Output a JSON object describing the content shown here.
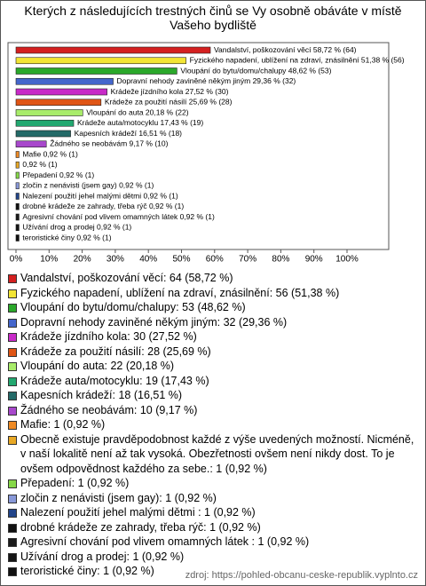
{
  "chart_data": {
    "type": "bar",
    "orientation": "horizontal",
    "title": "Kterých z následujících trestných činů se Vy osobně obáváte v místě Vašeho bydliště",
    "categories": [
      "Vandalství, poškozování věcí: 64 (58,72 %)",
      "Fyzického napadení, ublížení na zdraví, znásilnění: 56 (51,38 %)",
      "Vloupání do bytu/domu/chalupy: 53 (48,62 %)",
      "Dopravní nehody zaviněné někým jiným: 32 (29,36 %)",
      "Krádeže jízdního kola: 30 (27,52 %)",
      "Krádeže za použití násilí: 28 (25,69 %)",
      "Vloupání do auta: 22 (20,18 %)",
      "Krádeže auta/motocyklu: 19 (17,43 %)",
      "Kapesních krádeží: 18 (16,51 %)",
      "Žádného se neobávám: 10 (9,17 %)",
      "Mafie: 1 (0,92 %)",
      "Obecně existuje pravděpodobnost každé z výše uvedených možností. Nicméně, v naší lokalitě není až tak vysoká. Obezřetnosti ovšem není nikdy dost. To je ovšem odpovědnost každého za sebe.: 1 (0,92 %)",
      "Přepadení: 1 (0,92 %)",
      "zločin z nenávisti (jsem gay): 1 (0,92 %)",
      "Nalezení použití jehel malými dětmi : 1 (0,92 %)",
      "drobné krádeže ze zahrady, třeba rýč: 1 (0,92 %)",
      "Agresivní chování pod vlivem omamných látek : 1 (0,92 %)",
      "Užívání drog a prodej: 1 (0,92 %)",
      "teroristické činy: 1 (0,92 %)"
    ],
    "values": [
      58.72,
      51.38,
      48.62,
      29.36,
      27.52,
      25.69,
      20.18,
      17.43,
      16.51,
      9.17,
      0.92,
      0.92,
      0.92,
      0.92,
      0.92,
      0.92,
      0.92,
      0.92,
      0.92
    ],
    "value_labels": [
      "Vandalství, poškozování věcí 58,72 % (64)",
      "Fyzického napadení, ublížení na zdraví, znásilnění 51,38 % (56)",
      "Vloupání do bytu/domu/chalupy 48,62 % (53)",
      "Dopravní nehody zaviněné někým jiným 29,36 % (32)",
      "Krádeže jízdního kola 27,52 % (30)",
      "Krádeže za použití násilí 25,69 % (28)",
      "Vloupání do auta 20,18 % (22)",
      "Krádeže auta/motocyklu 17,43 % (19)",
      "Kapesních krádeží 16,51 % (18)",
      "Žádného se neobávám 9,17 % (10)",
      "Mafie 0,92 % (1)",
      "0,92 % (1)",
      "Přepadení 0,92 % (1)",
      "zločin z nenávisti (jsem gay) 0,92 % (1)",
      "Nalezení použití jehel malými dětmi  0,92 % (1)",
      "drobné krádeže ze zahrady, třeba rýč 0,92 % (1)",
      "Agresivní chování pod vlivem omamných látek  0,92 % (1)",
      "Užívání drog a prodej 0,92 % (1)",
      "teroristické činy 0,92 % (1)"
    ],
    "colors": [
      "#d42020",
      "#f2e535",
      "#2aa82a",
      "#4466cc",
      "#c82ac8",
      "#e05515",
      "#a8ec6a",
      "#22a870",
      "#236a68",
      "#a848cc",
      "#ee8a25",
      "#e8a825",
      "#86d848",
      "#8898d8",
      "#22458a",
      "#111111",
      "#1a1a1a",
      "#151515",
      "#101010"
    ],
    "xlim": [
      0,
      112
    ],
    "xticks": [
      {
        "value": 0,
        "label": "0%"
      },
      {
        "value": 10,
        "label": "10%"
      },
      {
        "value": 20,
        "label": "20%"
      },
      {
        "value": 30,
        "label": "30%"
      },
      {
        "value": 40,
        "label": "40%"
      },
      {
        "value": 50,
        "label": "50%"
      },
      {
        "value": 60,
        "label": "60%"
      },
      {
        "value": 70,
        "label": "70%"
      },
      {
        "value": 80,
        "label": "80%"
      },
      {
        "value": 90,
        "label": "90%"
      },
      {
        "value": 100,
        "label": "100%"
      }
    ],
    "source": "zdroj: https://pohled-obcanu-ceske-republik.vyplnto.cz"
  }
}
